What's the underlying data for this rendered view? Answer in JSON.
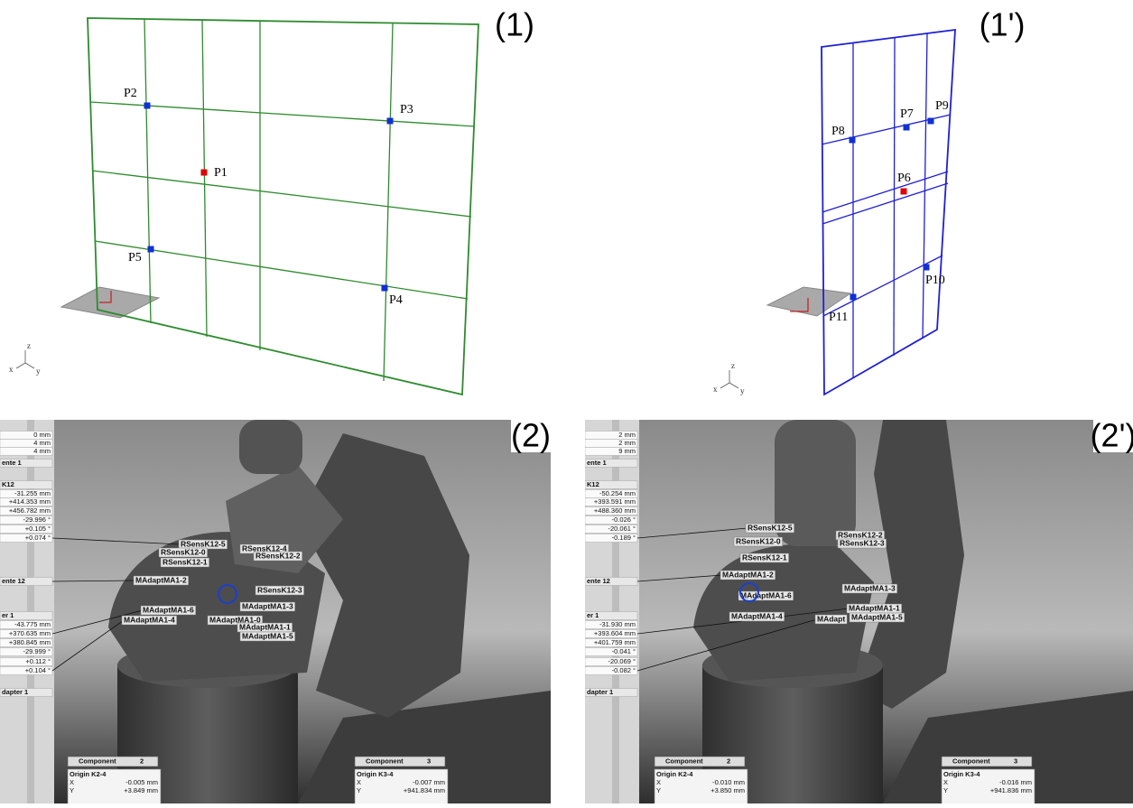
{
  "panels": [
    {
      "label": "(1)",
      "points": [
        "P1",
        "P2",
        "P3",
        "P4",
        "P5"
      ],
      "axes": [
        "z",
        "x",
        "y"
      ]
    },
    {
      "label": "(1')",
      "points": [
        "P6",
        "P7",
        "P8",
        "P9",
        "P10",
        "P11"
      ],
      "axes": [
        "z",
        "x",
        "y"
      ]
    }
  ],
  "photos": [
    {
      "label": "(2)",
      "sidebar": [
        "0 mm",
        "4 mm",
        "4 mm",
        "ente 1",
        "K12",
        "-31.255 mm",
        "+414.353 mm",
        "+456.782 mm",
        "-29.996 °",
        "+0.105 °",
        "+0.074 °",
        "ente 12",
        "er 1",
        "-43.775 mm",
        "+370.635 mm",
        "+380.845 mm",
        "-29.999 °",
        "+0.112 °",
        "+0.104 °",
        "dapter 1"
      ],
      "markers": [
        "RSensK12-5",
        "RSensK12-0",
        "RSensK12-4",
        "RSensK12-2",
        "RSensK12-1",
        "MAdaptMA1-2",
        "RSensK12-3",
        "MAdaptMA1-3",
        "MAdaptMA1-6",
        "MAdaptMA1-0",
        "MAdaptMA1-4",
        "MAdaptMA1-1",
        "MAdaptMA1-5"
      ],
      "components": [
        {
          "title": "Component",
          "number": "2",
          "origin": "Origin K2-4",
          "rows": [
            [
              "X",
              "-0.005 mm"
            ],
            [
              "Y",
              "+3.849 mm"
            ]
          ]
        },
        {
          "title": "Component",
          "number": "3",
          "origin": "Origin K3-4",
          "rows": [
            [
              "X",
              "-0.007 mm"
            ],
            [
              "Y",
              "+941.834 mm"
            ]
          ]
        }
      ]
    },
    {
      "label": "(2')",
      "sidebar": [
        "2 mm",
        "2 mm",
        "9 mm",
        "ente 1",
        "K12",
        "-50.254 mm",
        "+393.591 mm",
        "+488.360 mm",
        "-0.026 °",
        "-20.061 °",
        "-0.189 °",
        "ente 12",
        "er 1",
        "-31.930 mm",
        "+393.604 mm",
        "+401.759 mm",
        "-0.041 °",
        "-20.069 °",
        "-0.082 °",
        "dapter 1"
      ],
      "markers": [
        "RSensK12-5",
        "RSensK12-2",
        "RSensK12-0",
        "RSensK12-3",
        "RSensK12-1",
        "MAdaptMA1-2",
        "MAdaptMA1-3",
        "MAdaptMA1-6",
        "MAdaptMA1-1",
        "MAdaptMA1-4",
        "MAdapt",
        "MAdaptMA1-5"
      ],
      "components": [
        {
          "title": "Component",
          "number": "2",
          "origin": "Origin K2-4",
          "rows": [
            [
              "X",
              "-0.010 mm"
            ],
            [
              "Y",
              "+3.850 mm"
            ]
          ]
        },
        {
          "title": "Component",
          "number": "3",
          "origin": "Origin K3-4",
          "rows": [
            [
              "X",
              "-0.016 mm"
            ],
            [
              "Y",
              "+941.836 mm"
            ]
          ]
        }
      ]
    }
  ]
}
